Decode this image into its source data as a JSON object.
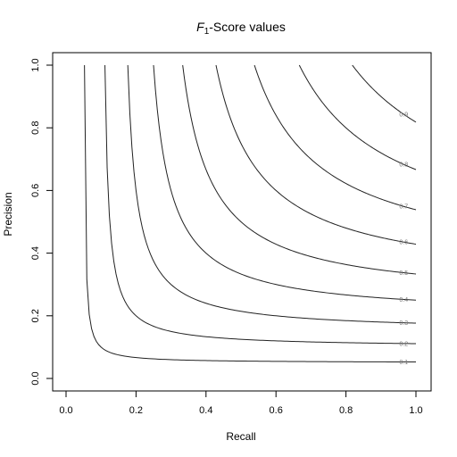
{
  "chart_data": {
    "type": "line",
    "title_italic": "F",
    "title_subscript": "1",
    "title_rest": "-Score values",
    "xlabel": "Recall",
    "ylabel": "Precision",
    "xlim": [
      0,
      1
    ],
    "ylim": [
      0,
      1
    ],
    "xticks": [
      "0.0",
      "0.2",
      "0.4",
      "0.6",
      "0.8",
      "1.0"
    ],
    "yticks": [
      "0.0",
      "0.2",
      "0.4",
      "0.6",
      "0.8",
      "1.0"
    ],
    "grid": false,
    "contour_levels": [
      0.1,
      0.2,
      0.3,
      0.4,
      0.5,
      0.6,
      0.7,
      0.8,
      0.9
    ],
    "contour_labels": [
      "0.1",
      "0.2",
      "0.3",
      "0.4",
      "0.5",
      "0.6",
      "0.7",
      "0.8",
      "0.9"
    ]
  }
}
